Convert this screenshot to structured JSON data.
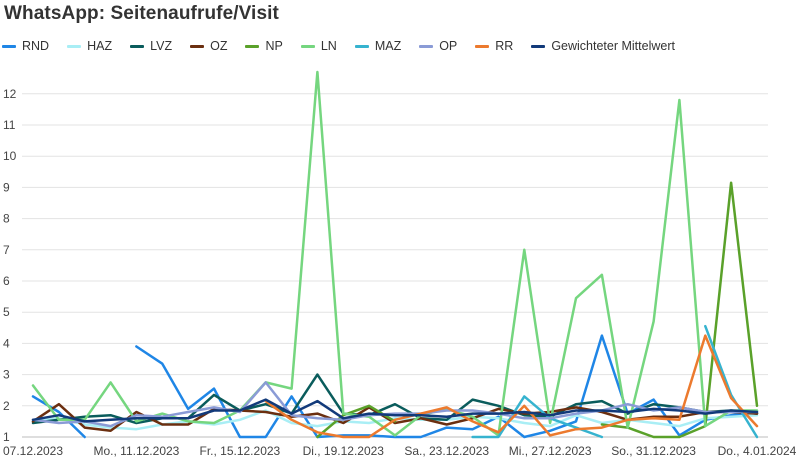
{
  "chart_data": {
    "type": "line",
    "title": "WhatsApp: Seitenaufrufe/Visit",
    "xlabel": "",
    "ylabel": "",
    "x_ticks": [
      "07.12.2023",
      "Mo., 11.12.2023",
      "Fr., 15.12.2023",
      "Di., 19.12.2023",
      "Sa., 23.12.2023",
      "Mi., 27.12.2023",
      "So., 31.12.2023",
      "Do., 4.01.2024"
    ],
    "x": [
      "07.12.2023",
      "08.12.2023",
      "09.12.2023",
      "10.12.2023",
      "11.12.2023",
      "12.12.2023",
      "13.12.2023",
      "14.12.2023",
      "15.12.2023",
      "16.12.2023",
      "17.12.2023",
      "18.12.2023",
      "19.12.2023",
      "20.12.2023",
      "21.12.2023",
      "22.12.2023",
      "23.12.2023",
      "24.12.2023",
      "25.12.2023",
      "26.12.2023",
      "27.12.2023",
      "28.12.2023",
      "29.12.2023",
      "30.12.2023",
      "31.12.2023",
      "01.01.2024",
      "02.01.2024",
      "03.01.2024",
      "04.01.2024"
    ],
    "y_ticks": [
      1,
      2,
      3,
      4,
      5,
      6,
      7,
      8,
      9,
      10,
      11,
      12
    ],
    "ylim": [
      1,
      12.5
    ],
    "grid": "horizontal",
    "legend_position": "top-left",
    "series": [
      {
        "name": "RND",
        "color": "#1f86e6",
        "values": [
          2.3,
          1.8,
          1.0,
          null,
          3.9,
          3.35,
          1.9,
          2.55,
          1.0,
          1.0,
          2.3,
          1.0,
          1.05,
          1.05,
          1.0,
          1.0,
          1.3,
          1.25,
          1.65,
          1.0,
          1.2,
          1.5,
          4.25,
          1.75,
          2.2,
          1.05,
          1.55,
          1.7,
          1.8
        ]
      },
      {
        "name": "HAZ",
        "color": "#a9eef5",
        "values": [
          1.5,
          1.6,
          1.4,
          1.3,
          1.25,
          1.4,
          1.5,
          1.4,
          1.55,
          1.85,
          1.45,
          1.35,
          1.5,
          1.45,
          1.6,
          1.55,
          1.55,
          1.65,
          1.6,
          1.45,
          1.35,
          1.7,
          1.45,
          1.55,
          1.45,
          1.35,
          1.6,
          1.65,
          1.7
        ]
      },
      {
        "name": "LVZ",
        "color": "#0a5c5c",
        "values": [
          1.45,
          1.55,
          1.65,
          1.7,
          1.45,
          1.6,
          1.6,
          2.35,
          1.85,
          2.05,
          1.75,
          3.0,
          1.75,
          1.7,
          2.05,
          1.6,
          1.55,
          2.2,
          2.0,
          1.7,
          1.65,
          2.05,
          2.15,
          1.75,
          2.05,
          1.95,
          1.8,
          1.85,
          1.75
        ]
      },
      {
        "name": "OZ",
        "color": "#6b2f10",
        "values": [
          1.5,
          2.05,
          1.3,
          1.2,
          1.8,
          1.4,
          1.4,
          1.9,
          1.85,
          1.8,
          1.65,
          1.75,
          1.45,
          1.95,
          1.45,
          1.6,
          1.4,
          1.6,
          1.9,
          1.75,
          1.8,
          1.95,
          1.8,
          1.55,
          1.65,
          1.65,
          1.8,
          1.8,
          1.75
        ]
      },
      {
        "name": "NP",
        "color": "#5aa12a",
        "values": [
          null,
          null,
          null,
          null,
          null,
          null,
          null,
          null,
          null,
          null,
          null,
          1.0,
          1.7,
          2.0,
          1.5,
          null,
          null,
          null,
          null,
          null,
          null,
          null,
          1.4,
          1.3,
          1.0,
          1.0,
          1.35,
          9.15,
          2.0
        ]
      },
      {
        "name": "LN",
        "color": "#75d67f",
        "values": [
          2.65,
          1.55,
          1.55,
          2.75,
          1.5,
          1.75,
          1.5,
          1.45,
          1.85,
          2.75,
          2.55,
          12.7,
          1.75,
          1.65,
          1.05,
          1.7,
          1.9,
          1.65,
          1.05,
          7.0,
          1.45,
          5.45,
          6.2,
          1.3,
          4.7,
          11.8,
          1.35,
          1.85,
          1.85
        ]
      },
      {
        "name": "MAZ",
        "color": "#36b3cf",
        "values": [
          null,
          null,
          null,
          null,
          null,
          null,
          null,
          null,
          null,
          null,
          null,
          null,
          null,
          null,
          null,
          null,
          null,
          1.0,
          1.0,
          2.3,
          1.6,
          1.3,
          1.0,
          null,
          null,
          null,
          4.55,
          2.35,
          1.0
        ]
      },
      {
        "name": "OP",
        "color": "#8a9bd6",
        "values": [
          1.55,
          1.45,
          1.5,
          1.35,
          1.7,
          1.65,
          1.8,
          1.95,
          1.8,
          2.75,
          1.7,
          1.6,
          1.55,
          1.7,
          1.75,
          1.75,
          1.85,
          1.85,
          1.75,
          1.6,
          1.6,
          1.75,
          1.85,
          2.05,
          1.85,
          1.95,
          1.8,
          1.8,
          1.8
        ]
      },
      {
        "name": "RR",
        "color": "#ec7a2e",
        "values": [
          null,
          null,
          null,
          null,
          null,
          null,
          null,
          null,
          null,
          2.15,
          1.55,
          1.15,
          1.0,
          1.0,
          1.55,
          1.75,
          1.95,
          1.5,
          1.15,
          2.0,
          1.05,
          1.25,
          1.3,
          1.55,
          1.6,
          1.55,
          4.25,
          2.25,
          1.35
        ]
      },
      {
        "name": "Gewichteter Mittelwert",
        "color": "#123a7a",
        "values": [
          1.55,
          1.7,
          1.5,
          1.55,
          1.6,
          1.6,
          1.6,
          1.85,
          1.85,
          2.2,
          1.75,
          2.15,
          1.6,
          1.75,
          1.7,
          1.7,
          1.65,
          1.75,
          1.75,
          1.8,
          1.7,
          1.85,
          1.85,
          1.8,
          1.9,
          1.85,
          1.75,
          1.85,
          1.8
        ]
      }
    ]
  }
}
